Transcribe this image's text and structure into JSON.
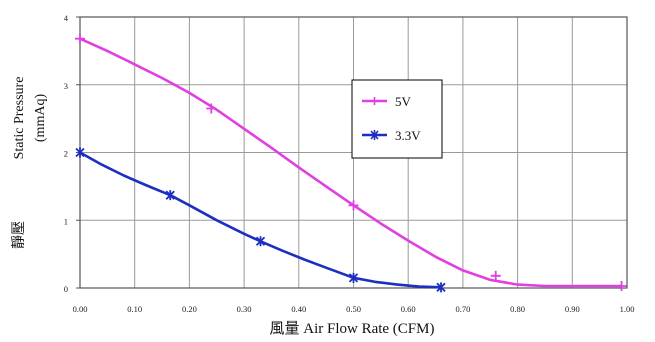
{
  "chart_data": {
    "type": "line",
    "title": "",
    "xlabel": "風量  Air Flow Rate (CFM)",
    "ylabel": "Static Pressure",
    "ylabel_unit": "(mmAq)",
    "ylabel_cjk": "靜壓",
    "xlim": [
      0,
      1.0
    ],
    "ylim": [
      0,
      4
    ],
    "x_ticks": [
      {
        "value": 0.0,
        "label": "0.00"
      },
      {
        "value": 0.1,
        "label": "0.10"
      },
      {
        "value": 0.2,
        "label": "0.20"
      },
      {
        "value": 0.3,
        "label": "0.30"
      },
      {
        "value": 0.4,
        "label": "0.40"
      },
      {
        "value": 0.5,
        "label": "0.50"
      },
      {
        "value": 0.6,
        "label": "0.60"
      },
      {
        "value": 0.7,
        "label": "0.70"
      },
      {
        "value": 0.8,
        "label": "0.80"
      },
      {
        "value": 0.9,
        "label": "0.90"
      },
      {
        "value": 1.0,
        "label": "1.00"
      }
    ],
    "y_ticks": [
      {
        "value": 0,
        "label": "0"
      },
      {
        "value": 1,
        "label": "1"
      },
      {
        "value": 2,
        "label": "2"
      },
      {
        "value": 3,
        "label": "3"
      },
      {
        "value": 4,
        "label": "4"
      }
    ],
    "grid": true,
    "legend_position": "center-right",
    "series": [
      {
        "name": "5V",
        "color": "#e040e0",
        "marker": "plus",
        "x": [
          0.0,
          0.05,
          0.1,
          0.15,
          0.2,
          0.25,
          0.3,
          0.35,
          0.4,
          0.45,
          0.5,
          0.55,
          0.6,
          0.65,
          0.7,
          0.75,
          0.8,
          0.85,
          0.9,
          0.95,
          0.99
        ],
        "y": [
          3.68,
          3.5,
          3.3,
          3.1,
          2.88,
          2.63,
          2.35,
          2.07,
          1.78,
          1.5,
          1.22,
          0.95,
          0.7,
          0.46,
          0.26,
          0.12,
          0.05,
          0.03,
          0.03,
          0.03,
          0.03
        ],
        "marker_x": [
          0.0,
          0.24,
          0.5,
          0.76,
          0.99
        ],
        "marker_y": [
          3.68,
          2.65,
          1.22,
          0.18,
          0.03
        ]
      },
      {
        "name": "3.3V",
        "color": "#1c2fc0",
        "marker": "star",
        "x": [
          0.0,
          0.04,
          0.08,
          0.12,
          0.165,
          0.2,
          0.25,
          0.3,
          0.33,
          0.37,
          0.41,
          0.45,
          0.5,
          0.54,
          0.58,
          0.62,
          0.66
        ],
        "y": [
          2.0,
          1.82,
          1.66,
          1.52,
          1.37,
          1.22,
          1.0,
          0.8,
          0.69,
          0.55,
          0.42,
          0.3,
          0.15,
          0.09,
          0.05,
          0.02,
          0.01
        ],
        "marker_x": [
          0.0,
          0.165,
          0.33,
          0.5,
          0.66
        ],
        "marker_y": [
          2.0,
          1.37,
          0.69,
          0.15,
          0.01
        ]
      }
    ]
  }
}
